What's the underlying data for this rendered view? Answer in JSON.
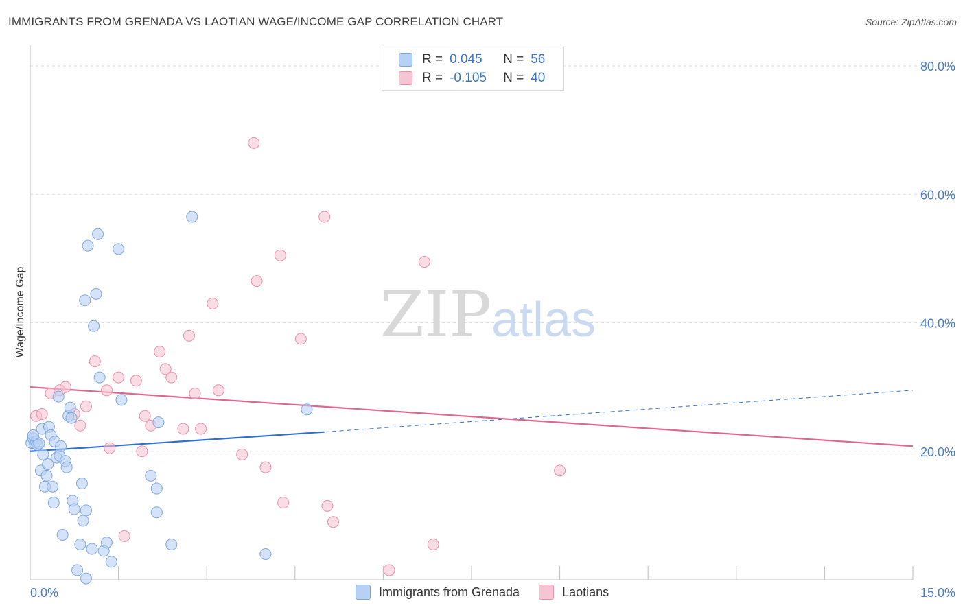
{
  "header": {
    "title": "IMMIGRANTS FROM GRENADA VS LAOTIAN WAGE/INCOME GAP CORRELATION CHART",
    "source": "Source: ZipAtlas.com"
  },
  "legend": {
    "r_label": "R =",
    "n_label": "N =",
    "series": [
      {
        "r": "0.045",
        "n": "56"
      },
      {
        "r": "-0.105",
        "n": "40"
      }
    ]
  },
  "bottom_legend": [
    "Immigrants from Grenada",
    "Laotians"
  ],
  "watermark": {
    "part1": "ZIP",
    "part2": "atlas"
  },
  "colors": {
    "blue_fill": "#b7d1f4",
    "blue_stroke": "#7ea6de",
    "blue_line": "#2f6fcf",
    "pink_fill": "#f6c5d4",
    "pink_stroke": "#e98fac",
    "pink_line": "#e0668f",
    "tick_text": "#4a7bc4"
  },
  "chart_data": {
    "type": "scatter",
    "title": "IMMIGRANTS FROM GRENADA VS LAOTIAN WAGE/INCOME GAP CORRELATION CHART",
    "xlabel": "",
    "ylabel": "Wage/Income Gap",
    "xlim": [
      0,
      15
    ],
    "ylim": [
      0,
      80
    ],
    "x_tick_labels": [
      "0.0%",
      "15.0%"
    ],
    "y_ticks": [
      20,
      40,
      60,
      80
    ],
    "y_tick_labels": [
      "20.0%",
      "40.0%",
      "60.0%",
      "80.0%"
    ],
    "grid": true,
    "legend_position": "top-center",
    "series": [
      {
        "name": "Immigrants from Grenada",
        "r": 0.045,
        "n": 56,
        "trend": {
          "x0": 0,
          "y0": 20.0,
          "x1": 5.0,
          "y1": 23.0,
          "dashed_to_x": 15.0,
          "dashed_to_y": 29.5
        },
        "points": [
          [
            0.02,
            21.3
          ],
          [
            0.05,
            22.0
          ],
          [
            0.08,
            21.2
          ],
          [
            0.1,
            21.5
          ],
          [
            0.12,
            21.0
          ],
          [
            0.15,
            21.2
          ],
          [
            0.2,
            23.5
          ],
          [
            0.18,
            17.0
          ],
          [
            0.22,
            19.5
          ],
          [
            0.25,
            14.5
          ],
          [
            0.28,
            16.2
          ],
          [
            0.3,
            18.0
          ],
          [
            0.32,
            23.8
          ],
          [
            0.35,
            22.5
          ],
          [
            0.38,
            14.5
          ],
          [
            0.4,
            12.0
          ],
          [
            0.42,
            21.5
          ],
          [
            0.45,
            19.0
          ],
          [
            0.48,
            28.5
          ],
          [
            0.5,
            19.3
          ],
          [
            0.52,
            20.8
          ],
          [
            0.55,
            7.0
          ],
          [
            0.6,
            18.5
          ],
          [
            0.62,
            17.5
          ],
          [
            0.65,
            25.5
          ],
          [
            0.68,
            26.8
          ],
          [
            0.7,
            25.2
          ],
          [
            0.72,
            12.3
          ],
          [
            0.75,
            11.0
          ],
          [
            0.85,
            5.5
          ],
          [
            0.88,
            15.0
          ],
          [
            0.9,
            9.2
          ],
          [
            0.93,
            43.5
          ],
          [
            0.95,
            10.8
          ],
          [
            0.98,
            52.0
          ],
          [
            1.05,
            4.8
          ],
          [
            1.08,
            39.5
          ],
          [
            1.12,
            44.5
          ],
          [
            1.15,
            53.8
          ],
          [
            1.18,
            31.5
          ],
          [
            1.25,
            4.5
          ],
          [
            1.3,
            5.8
          ],
          [
            1.38,
            2.8
          ],
          [
            1.5,
            51.5
          ],
          [
            1.55,
            28.0
          ],
          [
            2.05,
            16.2
          ],
          [
            2.15,
            14.2
          ],
          [
            2.18,
            24.5
          ],
          [
            2.15,
            10.5
          ],
          [
            2.4,
            5.5
          ],
          [
            2.75,
            56.5
          ],
          [
            4.0,
            4.0
          ],
          [
            4.7,
            26.5
          ],
          [
            0.8,
            1.5
          ],
          [
            0.95,
            0.2
          ],
          [
            0.05,
            22.5
          ]
        ]
      },
      {
        "name": "Laotians",
        "r": -0.105,
        "n": 40,
        "trend": {
          "x0": 0,
          "y0": 30.0,
          "x1": 15.0,
          "y1": 20.8
        },
        "points": [
          [
            0.1,
            25.5
          ],
          [
            0.2,
            25.8
          ],
          [
            0.35,
            29.0
          ],
          [
            0.5,
            29.5
          ],
          [
            0.6,
            30.0
          ],
          [
            0.75,
            25.8
          ],
          [
            0.85,
            24.0
          ],
          [
            0.95,
            27.0
          ],
          [
            1.1,
            34.0
          ],
          [
            1.3,
            29.5
          ],
          [
            1.35,
            20.5
          ],
          [
            1.5,
            31.5
          ],
          [
            1.6,
            6.8
          ],
          [
            1.8,
            31.0
          ],
          [
            1.9,
            20.0
          ],
          [
            1.95,
            25.5
          ],
          [
            2.05,
            24.0
          ],
          [
            2.2,
            35.5
          ],
          [
            2.3,
            32.8
          ],
          [
            2.4,
            31.5
          ],
          [
            2.6,
            23.5
          ],
          [
            2.7,
            38.0
          ],
          [
            2.8,
            29.0
          ],
          [
            2.9,
            23.5
          ],
          [
            3.1,
            43.0
          ],
          [
            3.2,
            29.5
          ],
          [
            3.6,
            19.5
          ],
          [
            3.8,
            68.0
          ],
          [
            3.85,
            46.5
          ],
          [
            4.0,
            17.5
          ],
          [
            4.25,
            50.5
          ],
          [
            4.3,
            12.0
          ],
          [
            4.6,
            37.5
          ],
          [
            5.0,
            56.5
          ],
          [
            5.05,
            11.5
          ],
          [
            5.15,
            9.0
          ],
          [
            6.1,
            1.5
          ],
          [
            6.7,
            49.5
          ],
          [
            6.85,
            5.5
          ],
          [
            9.0,
            17.0
          ]
        ]
      }
    ]
  }
}
